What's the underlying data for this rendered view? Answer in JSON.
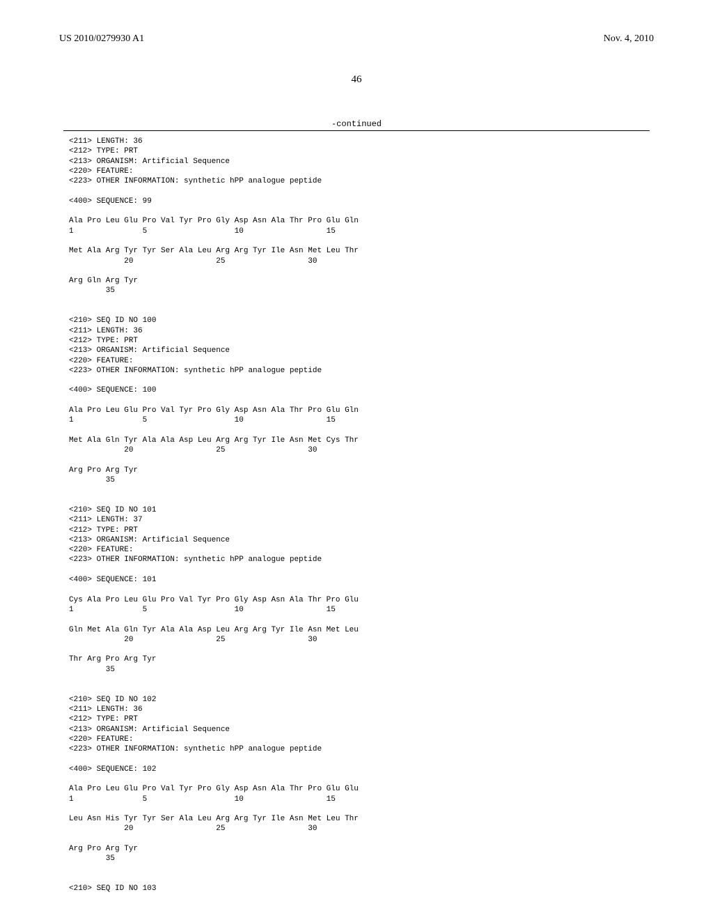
{
  "header": {
    "pub_number": "US 2010/0279930 A1",
    "pub_date": "Nov. 4, 2010"
  },
  "page_number": "46",
  "continued_label": "-continued",
  "seq_blocks": [
    {
      "lines": [
        "<211> LENGTH: 36",
        "<212> TYPE: PRT",
        "<213> ORGANISM: Artificial Sequence",
        "<220> FEATURE:",
        "<223> OTHER INFORMATION: synthetic hPP analogue peptide",
        "",
        "<400> SEQUENCE: 99",
        "",
        "Ala Pro Leu Glu Pro Val Tyr Pro Gly Asp Asn Ala Thr Pro Glu Gln",
        "1               5                   10                  15",
        "",
        "Met Ala Arg Tyr Tyr Ser Ala Leu Arg Arg Tyr Ile Asn Met Leu Thr",
        "            20                  25                  30",
        "",
        "Arg Gln Arg Tyr",
        "        35",
        "",
        "",
        "<210> SEQ ID NO 100",
        "<211> LENGTH: 36",
        "<212> TYPE: PRT",
        "<213> ORGANISM: Artificial Sequence",
        "<220> FEATURE:",
        "<223> OTHER INFORMATION: synthetic hPP analogue peptide",
        "",
        "<400> SEQUENCE: 100",
        "",
        "Ala Pro Leu Glu Pro Val Tyr Pro Gly Asp Asn Ala Thr Pro Glu Gln",
        "1               5                   10                  15",
        "",
        "Met Ala Gln Tyr Ala Ala Asp Leu Arg Arg Tyr Ile Asn Met Cys Thr",
        "            20                  25                  30",
        "",
        "Arg Pro Arg Tyr",
        "        35",
        "",
        "",
        "<210> SEQ ID NO 101",
        "<211> LENGTH: 37",
        "<212> TYPE: PRT",
        "<213> ORGANISM: Artificial Sequence",
        "<220> FEATURE:",
        "<223> OTHER INFORMATION: synthetic hPP analogue peptide",
        "",
        "<400> SEQUENCE: 101",
        "",
        "Cys Ala Pro Leu Glu Pro Val Tyr Pro Gly Asp Asn Ala Thr Pro Glu",
        "1               5                   10                  15",
        "",
        "Gln Met Ala Gln Tyr Ala Ala Asp Leu Arg Arg Tyr Ile Asn Met Leu",
        "            20                  25                  30",
        "",
        "Thr Arg Pro Arg Tyr",
        "        35",
        "",
        "",
        "<210> SEQ ID NO 102",
        "<211> LENGTH: 36",
        "<212> TYPE: PRT",
        "<213> ORGANISM: Artificial Sequence",
        "<220> FEATURE:",
        "<223> OTHER INFORMATION: synthetic hPP analogue peptide",
        "",
        "<400> SEQUENCE: 102",
        "",
        "Ala Pro Leu Glu Pro Val Tyr Pro Gly Asp Asn Ala Thr Pro Glu Glu",
        "1               5                   10                  15",
        "",
        "Leu Asn His Tyr Tyr Ser Ala Leu Arg Arg Tyr Ile Asn Met Leu Thr",
        "            20                  25                  30",
        "",
        "Arg Pro Arg Tyr",
        "        35",
        "",
        "",
        "<210> SEQ ID NO 103"
      ]
    }
  ]
}
